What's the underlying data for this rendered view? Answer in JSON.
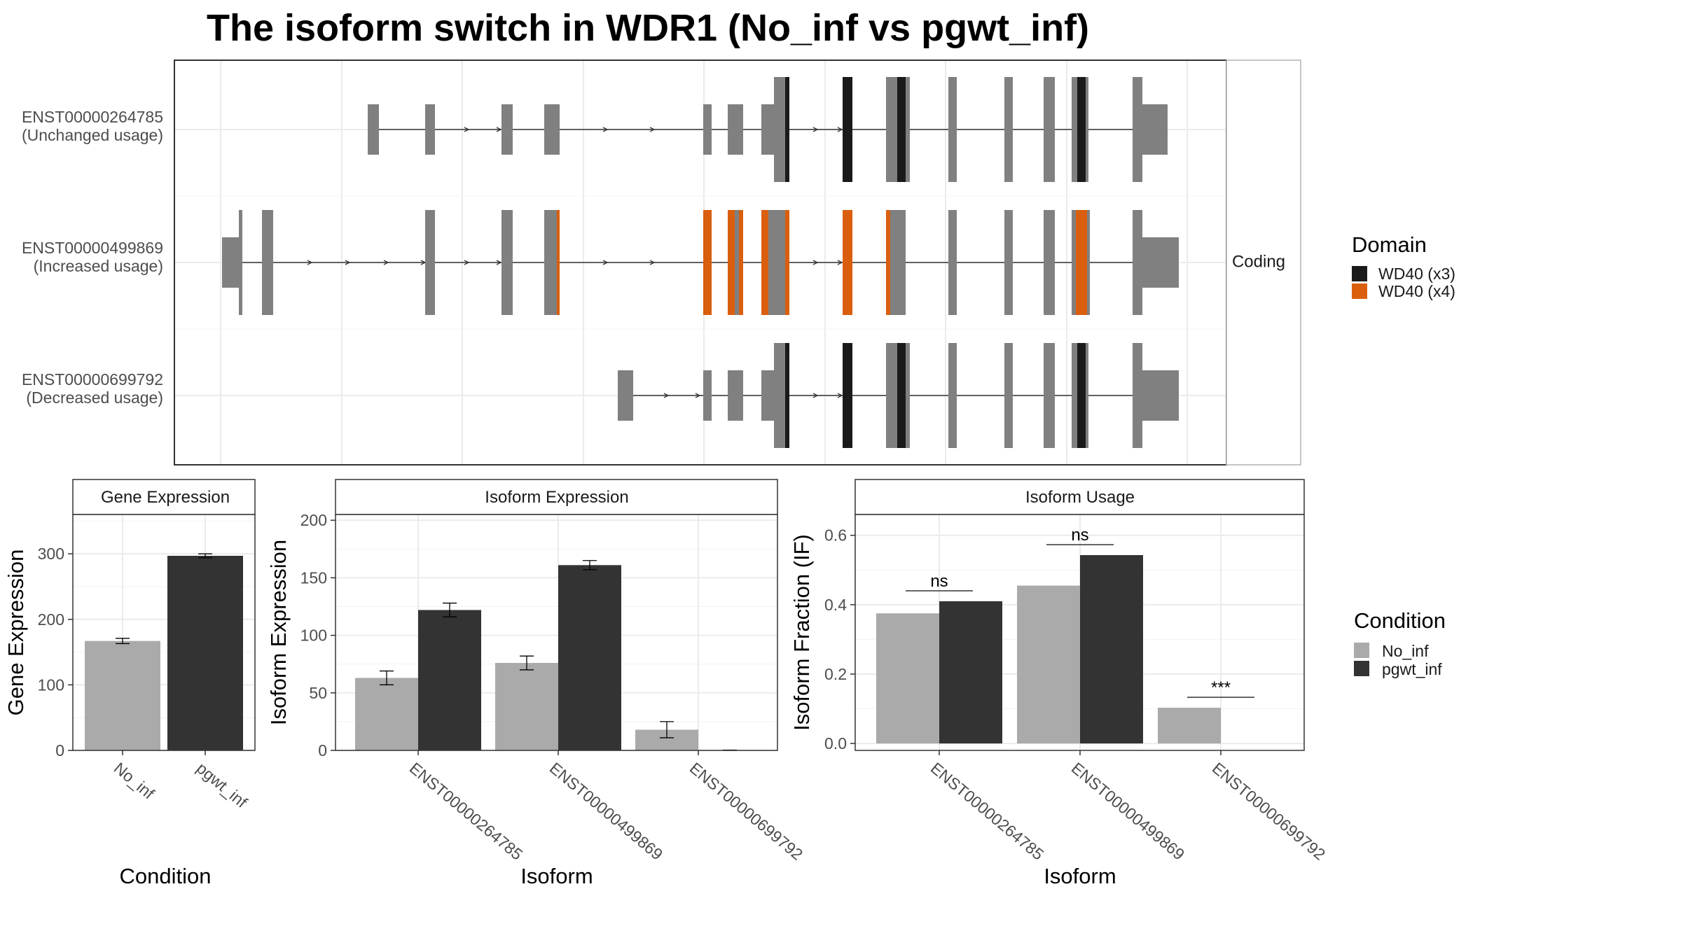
{
  "title": "The isoform switch in WDR1 (No_inf vs pgwt_inf)",
  "colors": {
    "exon": "#808080",
    "wd40_x3": "#1a1a1a",
    "wd40_x4": "#d95f0e",
    "no_inf": "#aaaaaa",
    "pgwt_inf": "#333333",
    "panel_grid": "#ebebeb",
    "strip_bg": "#ffffff"
  },
  "structure": {
    "strip_label": "Coding",
    "transcripts": [
      {
        "id": "ENST00000264785",
        "usage": "(Unchanged usage)"
      },
      {
        "id": "ENST00000499869",
        "usage": "(Increased usage)"
      },
      {
        "id": "ENST00000699792",
        "usage": "(Decreased usage)"
      }
    ]
  },
  "legends": {
    "domain": {
      "title": "Domain",
      "items": [
        {
          "label": "WD40 (x3)",
          "color": "#1a1a1a"
        },
        {
          "label": "WD40 (x4)",
          "color": "#d95f0e"
        }
      ]
    },
    "condition": {
      "title": "Condition",
      "items": [
        {
          "label": "No_inf",
          "color": "#aaaaaa"
        },
        {
          "label": "pgwt_inf",
          "color": "#333333"
        }
      ]
    }
  },
  "chart_data": [
    {
      "type": "bar",
      "title": "Gene Expression",
      "xlabel": "Condition",
      "ylabel": "Gene Expression",
      "categories": [
        "No_inf",
        "pgwt_inf"
      ],
      "values": [
        167,
        297
      ],
      "errors": [
        4,
        3
      ],
      "ylim": [
        0,
        360
      ],
      "yticks": [
        0,
        100,
        200,
        300
      ],
      "grid": true
    },
    {
      "type": "bar",
      "title": "Isoform Expression",
      "xlabel": "Isoform",
      "ylabel": "Isoform Expression",
      "categories": [
        "ENST00000264785",
        "ENST00000499869",
        "ENST00000699792"
      ],
      "series": [
        {
          "name": "No_inf",
          "values": [
            63,
            76,
            18
          ],
          "errors": [
            6,
            6,
            7
          ]
        },
        {
          "name": "pgwt_inf",
          "values": [
            122,
            161,
            0
          ],
          "errors": [
            6,
            4,
            0.3
          ]
        }
      ],
      "ylim": [
        0,
        205
      ],
      "yticks": [
        0,
        50,
        100,
        150,
        200
      ],
      "grid": true
    },
    {
      "type": "bar",
      "title": "Isoform Usage",
      "xlabel": "Isoform",
      "ylabel": "Isoform Fraction (IF)",
      "categories": [
        "ENST00000264785",
        "ENST00000499869",
        "ENST00000699792"
      ],
      "series": [
        {
          "name": "No_inf",
          "values": [
            0.375,
            0.455,
            0.103
          ]
        },
        {
          "name": "pgwt_inf",
          "values": [
            0.41,
            0.543,
            0
          ]
        }
      ],
      "significance": [
        "ns",
        "ns",
        "***"
      ],
      "ylim": [
        -0.02,
        0.66
      ],
      "yticks": [
        0.0,
        0.2,
        0.4,
        0.6
      ],
      "grid": true
    }
  ]
}
